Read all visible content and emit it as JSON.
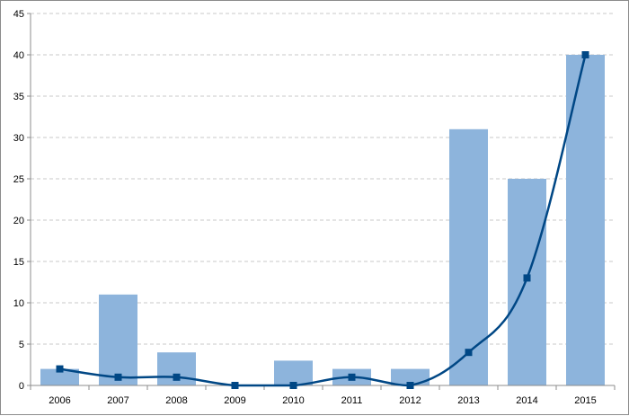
{
  "chart_data": {
    "type": "bar",
    "categories": [
      "2006",
      "2007",
      "2008",
      "2009",
      "2010",
      "2011",
      "2012",
      "2013",
      "2014",
      "2015"
    ],
    "series": [
      {
        "type": "bar",
        "values": [
          2,
          11,
          4,
          0,
          3,
          2,
          2,
          31,
          25,
          40
        ]
      },
      {
        "type": "line",
        "marker": "square",
        "values": [
          2,
          1,
          1,
          0,
          0,
          1,
          0,
          4,
          13,
          40
        ]
      }
    ],
    "ylim": [
      0,
      45
    ],
    "yticks": [
      0,
      5,
      10,
      15,
      20,
      25,
      30,
      35,
      40,
      45
    ],
    "grid": true,
    "legend": "none",
    "colors": {
      "bar": "#8db4dc",
      "line": "#004785",
      "grid": "#c8c8c8",
      "axis": "#8c8c8c"
    }
  }
}
